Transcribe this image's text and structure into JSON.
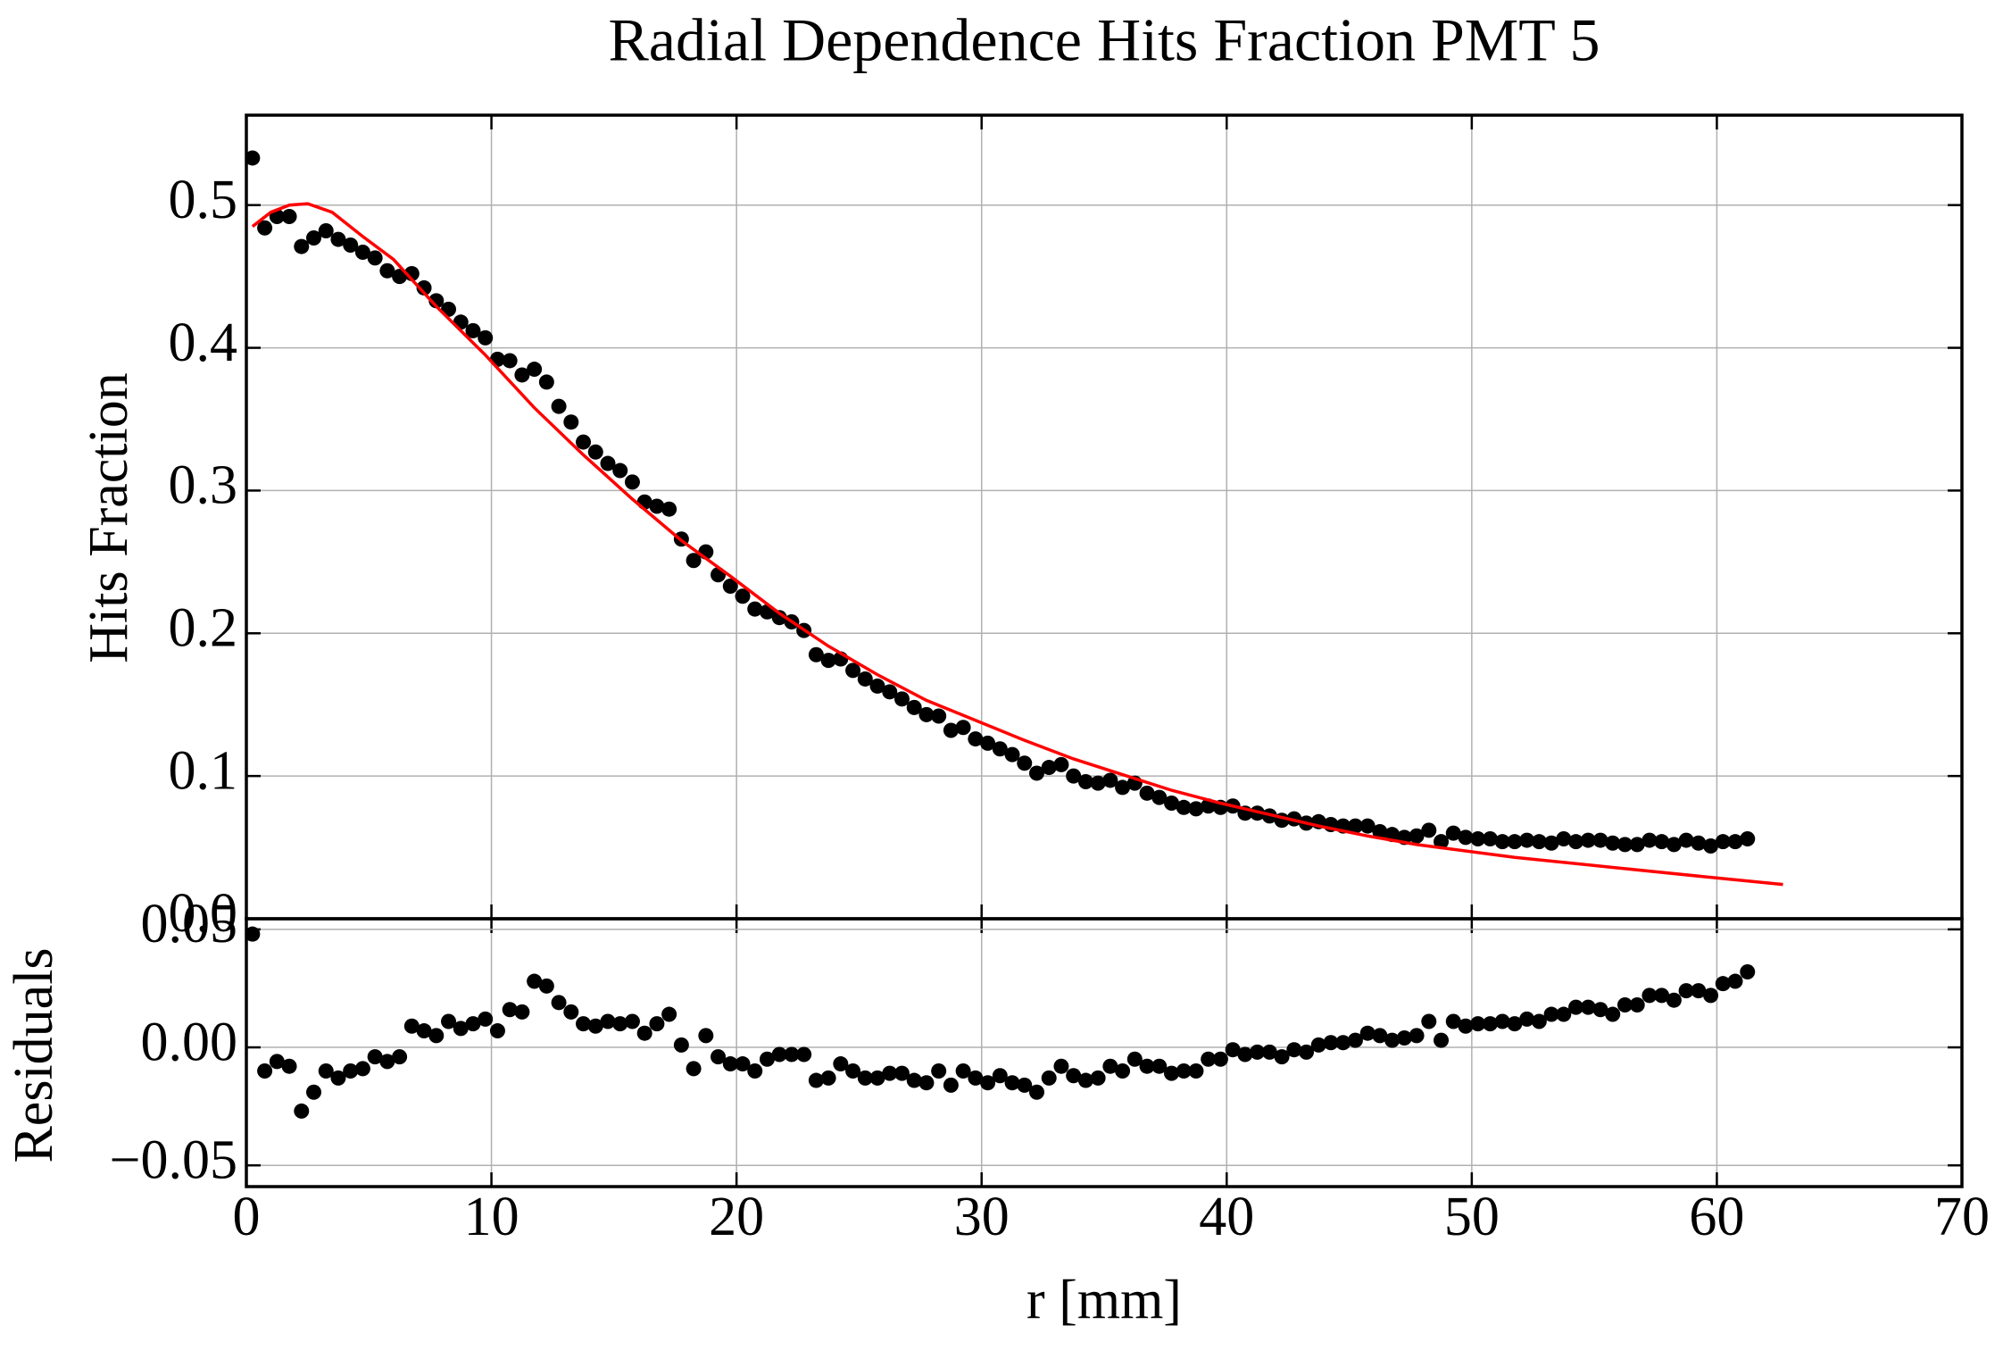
{
  "chart_data": [
    {
      "type": "scatter",
      "title": "Radial Dependence Hits Fraction PMT 5",
      "ylabel": "Hits Fraction",
      "xlim": [
        0,
        70
      ],
      "xticks": [
        0,
        10,
        20,
        30,
        40,
        50,
        60,
        70
      ],
      "ylim": [
        0,
        0.563
      ],
      "yticks": [
        {
          "value": 0,
          "label": "0.0"
        },
        0.1,
        0.2,
        0.3,
        0.4,
        0.5
      ],
      "grid": true,
      "x": [
        0.25,
        0.75,
        1.25,
        1.75,
        2.25,
        2.75,
        3.25,
        3.75,
        4.25,
        4.75,
        5.25,
        5.75,
        6.25,
        6.75,
        7.25,
        7.75,
        8.25,
        8.75,
        9.25,
        9.75,
        10.25,
        10.75,
        11.25,
        11.75,
        12.25,
        12.75,
        13.25,
        13.75,
        14.25,
        14.75,
        15.25,
        15.75,
        16.25,
        16.75,
        17.25,
        17.75,
        18.25,
        18.75,
        19.25,
        19.75,
        20.25,
        20.75,
        21.25,
        21.75,
        22.25,
        22.75,
        23.25,
        23.75,
        24.25,
        24.75,
        25.25,
        25.75,
        26.25,
        26.75,
        27.25,
        27.75,
        28.25,
        28.75,
        29.25,
        29.75,
        30.25,
        30.75,
        31.25,
        31.75,
        32.25,
        32.75,
        33.25,
        33.75,
        34.25,
        34.75,
        35.25,
        35.75,
        36.25,
        36.75,
        37.25,
        37.75,
        38.25,
        38.75,
        39.25,
        39.75,
        40.25,
        40.75,
        41.25,
        41.75,
        42.25,
        42.75,
        43.25,
        43.75,
        44.25,
        44.75,
        45.25,
        45.75,
        46.25,
        46.75,
        47.25,
        47.75,
        48.25,
        48.75,
        49.25,
        49.75,
        50.25,
        50.75,
        51.25,
        51.75,
        52.25,
        52.75,
        53.25,
        53.75,
        54.25,
        54.75,
        55.25,
        55.75,
        56.25,
        56.75,
        57.25,
        57.75,
        58.25,
        58.75,
        59.25,
        59.75,
        60.25,
        60.75,
        61.25
      ],
      "series": [
        {
          "type": "scatter",
          "color": "#000000",
          "values": [
            0.533,
            0.484,
            0.492,
            0.492,
            0.471,
            0.477,
            0.482,
            0.476,
            0.472,
            0.467,
            0.463,
            0.454,
            0.45,
            0.452,
            0.442,
            0.433,
            0.427,
            0.418,
            0.412,
            0.407,
            0.392,
            0.391,
            0.381,
            0.385,
            0.376,
            0.359,
            0.348,
            0.334,
            0.327,
            0.319,
            0.314,
            0.306,
            0.292,
            0.289,
            0.287,
            0.266,
            0.251,
            0.257,
            0.241,
            0.233,
            0.226,
            0.217,
            0.215,
            0.211,
            0.208,
            0.202,
            0.185,
            0.181,
            0.182,
            0.174,
            0.168,
            0.163,
            0.159,
            0.154,
            0.148,
            0.143,
            0.142,
            0.132,
            0.134,
            0.126,
            0.123,
            0.119,
            0.115,
            0.109,
            0.102,
            0.106,
            0.108,
            0.1,
            0.096,
            0.095,
            0.097,
            0.092,
            0.095,
            0.088,
            0.085,
            0.081,
            0.078,
            0.077,
            0.079,
            0.078,
            0.079,
            0.074,
            0.074,
            0.072,
            0.069,
            0.07,
            0.067,
            0.068,
            0.066,
            0.065,
            0.065,
            0.065,
            0.061,
            0.059,
            0.057,
            0.058,
            0.062,
            0.054,
            0.06,
            0.057,
            0.056,
            0.056,
            0.054,
            0.054,
            0.055,
            0.054,
            0.053,
            0.056,
            0.054,
            0.055,
            0.055,
            0.053,
            0.052,
            0.052,
            0.055,
            0.054,
            0.052,
            0.055,
            0.053,
            0.051,
            0.054,
            0.054,
            0.056
          ]
        },
        {
          "type": "line",
          "color": "#ff0000",
          "x": [
            0.25,
            1,
            1.75,
            2.5,
            3.5,
            4.75,
            6,
            7.75,
            9.75,
            11.75,
            13.75,
            15.75,
            17.75,
            19.75,
            21.75,
            23.75,
            25.75,
            27.75,
            29.75,
            31.75,
            33.75,
            35.75,
            37.75,
            39.75,
            41.75,
            43.75,
            45.75,
            47.75,
            51.75,
            55.75,
            59.75,
            62.7
          ],
          "values": [
            0.485,
            0.495,
            0.5,
            0.501,
            0.495,
            0.478,
            0.462,
            0.429,
            0.395,
            0.358,
            0.325,
            0.294,
            0.265,
            0.24,
            0.214,
            0.191,
            0.171,
            0.153,
            0.139,
            0.125,
            0.112,
            0.101,
            0.09,
            0.081,
            0.073,
            0.065,
            0.058,
            0.052,
            0.043,
            0.036,
            0.029,
            0.024
          ]
        }
      ]
    },
    {
      "type": "scatter",
      "ylabel": "Residuals",
      "xlabel": "r [mm]",
      "xlim": [
        0,
        70
      ],
      "xticks": [
        0,
        10,
        20,
        30,
        40,
        50,
        60,
        70
      ],
      "ylim": [
        -0.059,
        0.0545
      ],
      "yticks": [
        {
          "value": -0.05,
          "label": "−0.05"
        },
        {
          "value": 0,
          "label": "0.00"
        },
        0.05
      ],
      "grid": true,
      "x": [
        0.25,
        0.75,
        1.25,
        1.75,
        2.25,
        2.75,
        3.25,
        3.75,
        4.25,
        4.75,
        5.25,
        5.75,
        6.25,
        6.75,
        7.25,
        7.75,
        8.25,
        8.75,
        9.25,
        9.75,
        10.25,
        10.75,
        11.25,
        11.75,
        12.25,
        12.75,
        13.25,
        13.75,
        14.25,
        14.75,
        15.25,
        15.75,
        16.25,
        16.75,
        17.25,
        17.75,
        18.25,
        18.75,
        19.25,
        19.75,
        20.25,
        20.75,
        21.25,
        21.75,
        22.25,
        22.75,
        23.25,
        23.75,
        24.25,
        24.75,
        25.25,
        25.75,
        26.25,
        26.75,
        27.25,
        27.75,
        28.25,
        28.75,
        29.25,
        29.75,
        30.25,
        30.75,
        31.25,
        31.75,
        32.25,
        32.75,
        33.25,
        33.75,
        34.25,
        34.75,
        35.25,
        35.75,
        36.25,
        36.75,
        37.25,
        37.75,
        38.25,
        38.75,
        39.25,
        39.75,
        40.25,
        40.75,
        41.25,
        41.75,
        42.25,
        42.75,
        43.25,
        43.75,
        44.25,
        44.75,
        45.25,
        45.75,
        46.25,
        46.75,
        47.25,
        47.75,
        48.25,
        48.75,
        49.25,
        49.75,
        50.25,
        50.75,
        51.25,
        51.75,
        52.25,
        52.75,
        53.25,
        53.75,
        54.25,
        54.75,
        55.25,
        55.75,
        56.25,
        56.75,
        57.25,
        57.75,
        58.25,
        58.75,
        59.25,
        59.75,
        60.25,
        60.75,
        61.25
      ],
      "series": [
        {
          "type": "scatter",
          "color": "#000000",
          "values": [
            0.048,
            -0.01,
            -0.006,
            -0.008,
            -0.027,
            -0.019,
            -0.01,
            -0.013,
            -0.01,
            -0.009,
            -0.004,
            -0.006,
            -0.004,
            0.009,
            0.007,
            0.005,
            0.011,
            0.008,
            0.01,
            0.012,
            0.007,
            0.016,
            0.015,
            0.028,
            0.026,
            0.019,
            0.015,
            0.01,
            0.009,
            0.011,
            0.01,
            0.011,
            0.006,
            0.01,
            0.014,
            0.001,
            -0.009,
            0.005,
            -0.004,
            -0.007,
            -0.007,
            -0.01,
            -0.005,
            -0.003,
            -0.003,
            -0.003,
            -0.014,
            -0.013,
            -0.007,
            -0.01,
            -0.013,
            -0.013,
            -0.011,
            -0.011,
            -0.014,
            -0.015,
            -0.01,
            -0.016,
            -0.01,
            -0.013,
            -0.015,
            -0.012,
            -0.015,
            -0.016,
            -0.019,
            -0.013,
            -0.008,
            -0.012,
            -0.014,
            -0.013,
            -0.008,
            -0.01,
            -0.005,
            -0.008,
            -0.008,
            -0.011,
            -0.01,
            -0.01,
            -0.005,
            -0.005,
            -0.001,
            -0.003,
            -0.002,
            -0.002,
            -0.004,
            -0.001,
            -0.002,
            0.001,
            0.002,
            0.002,
            0.003,
            0.006,
            0.005,
            0.003,
            0.004,
            0.005,
            0.011,
            0.003,
            0.011,
            0.009,
            0.01,
            0.01,
            0.011,
            0.01,
            0.012,
            0.011,
            0.014,
            0.014,
            0.017,
            0.017,
            0.016,
            0.014,
            0.018,
            0.018,
            0.022,
            0.022,
            0.02,
            0.024,
            0.024,
            0.022,
            0.027,
            0.028,
            0.032
          ]
        }
      ]
    }
  ]
}
